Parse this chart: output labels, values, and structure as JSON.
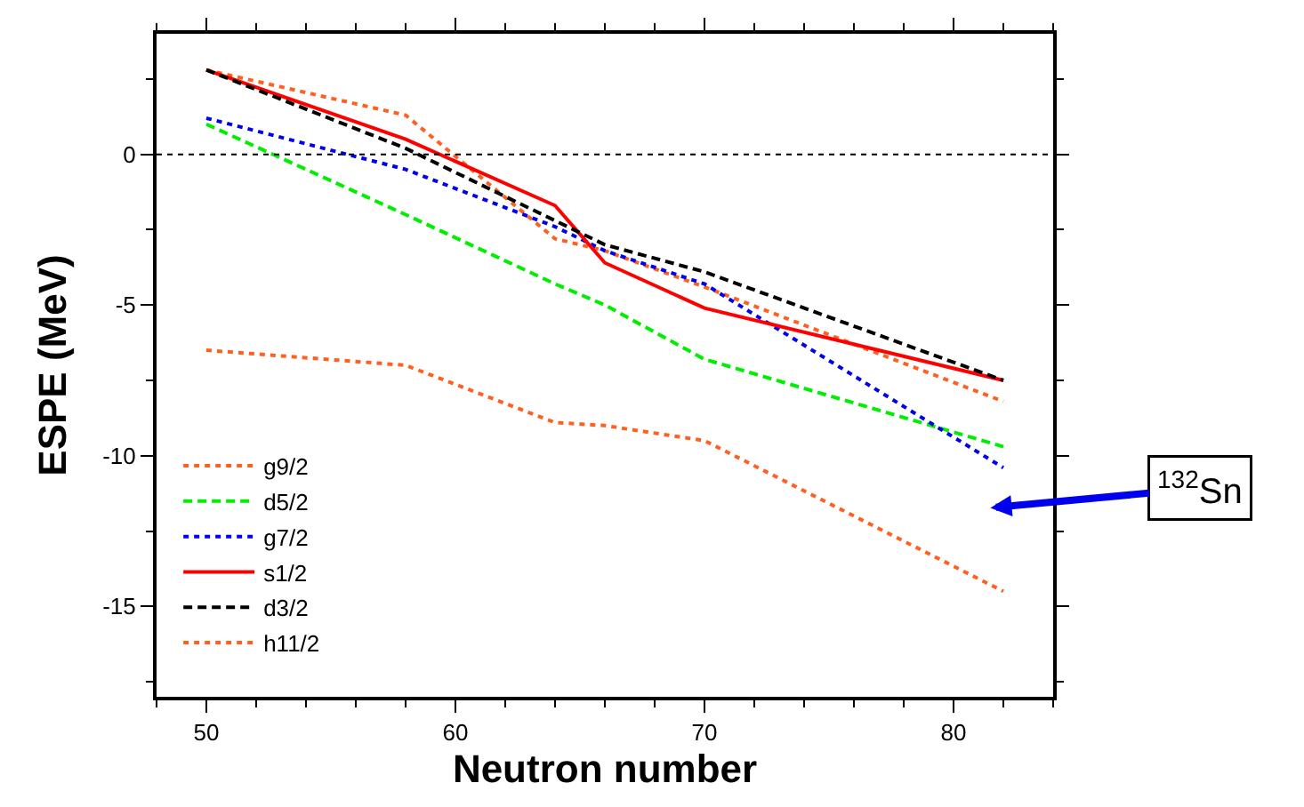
{
  "chart_data": {
    "type": "line",
    "xlabel": "Neutron number",
    "ylabel": "ESPE (MeV)",
    "x": [
      50,
      58,
      64,
      66,
      70,
      82
    ],
    "xlim": [
      48,
      84
    ],
    "xticks": [
      50,
      60,
      70,
      80
    ],
    "ylim": [
      -18,
      4
    ],
    "yticks": [
      -15,
      -10,
      -5,
      0
    ],
    "legend": "bottom left",
    "marker": "none",
    "series": [
      {
        "name": "g9/2",
        "color": "#ff6020",
        "line_style": "dotted",
        "values": [
          2.8,
          1.3,
          -2.8,
          -3.2,
          -4.4,
          -8.2
        ]
      },
      {
        "name": "d5/2",
        "color": "#00ee00",
        "line_style": "dashed",
        "values": [
          1.0,
          -2.0,
          -4.3,
          -5.0,
          -6.8,
          -9.7
        ]
      },
      {
        "name": "g7/2",
        "color": "#0000ee",
        "line_style": "dotted",
        "values": [
          1.2,
          -0.5,
          -2.4,
          -3.2,
          -4.3,
          -10.4
        ]
      },
      {
        "name": "s1/2",
        "color": "#ff0000",
        "line_style": "solid",
        "values": [
          2.8,
          0.5,
          -1.7,
          -3.6,
          -5.1,
          -7.5
        ]
      },
      {
        "name": "d3/2",
        "color": "#000000",
        "line_style": "dashed",
        "values": [
          2.8,
          0.2,
          -2.2,
          -3.0,
          -3.9,
          -7.5
        ]
      },
      {
        "name": "h11/2",
        "color": "#ff6020",
        "line_style": "dotted",
        "values": [
          -6.5,
          -7.0,
          -8.9,
          -9.0,
          -9.5,
          -14.5
        ]
      }
    ],
    "ref_lines": [
      {
        "axis": "y",
        "value": 0,
        "label": null,
        "color": "#000000",
        "line_style": "dotted"
      }
    ],
    "annotations": [
      "$^{132}$Sn"
    ]
  }
}
